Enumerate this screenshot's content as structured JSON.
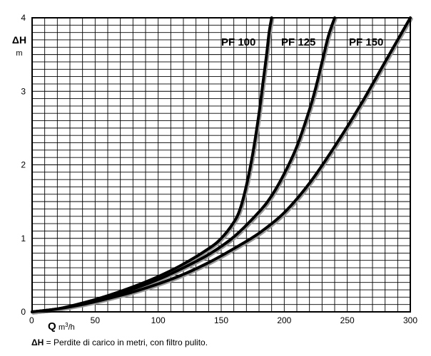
{
  "chart_data": {
    "type": "line",
    "ylabel": "ΔH",
    "yunit": "m",
    "xlabel": "Q",
    "xunit_base": "m",
    "xunit_sup": "3",
    "xunit_tail": "/h",
    "xlim": [
      0,
      300
    ],
    "ylim": [
      0,
      4
    ],
    "xticks": [
      "0",
      "50",
      "100",
      "150",
      "200",
      "250",
      "300"
    ],
    "yticks": [
      "0",
      "1",
      "2",
      "3",
      "4"
    ],
    "grid": true,
    "series": [
      {
        "name": "PF 100",
        "x": [
          0,
          20,
          40,
          60,
          80,
          100,
          120,
          140,
          150,
          160,
          165,
          170,
          175,
          180,
          183,
          186,
          188,
          190
        ],
        "y": [
          0,
          0.04,
          0.12,
          0.22,
          0.34,
          0.48,
          0.65,
          0.86,
          1.0,
          1.22,
          1.4,
          1.72,
          2.15,
          2.7,
          3.1,
          3.5,
          3.8,
          4.0
        ]
      },
      {
        "name": "PF 125",
        "x": [
          0,
          20,
          40,
          60,
          80,
          100,
          120,
          140,
          160,
          180,
          190,
          200,
          210,
          220,
          225,
          230,
          235,
          240
        ],
        "y": [
          0,
          0.04,
          0.11,
          0.2,
          0.31,
          0.44,
          0.6,
          0.78,
          1.02,
          1.36,
          1.58,
          1.88,
          2.25,
          2.75,
          3.05,
          3.4,
          3.75,
          4.0
        ]
      },
      {
        "name": "PF 150",
        "x": [
          0,
          20,
          40,
          60,
          80,
          100,
          120,
          140,
          160,
          180,
          200,
          220,
          240,
          260,
          280,
          300
        ],
        "y": [
          0,
          0.04,
          0.1,
          0.18,
          0.27,
          0.38,
          0.51,
          0.67,
          0.86,
          1.07,
          1.35,
          1.75,
          2.25,
          2.8,
          3.4,
          4.0
        ]
      }
    ]
  },
  "caption": {
    "symbol": "ΔH",
    "text": " = Perdite di carico in metri, con filtro pulito."
  }
}
